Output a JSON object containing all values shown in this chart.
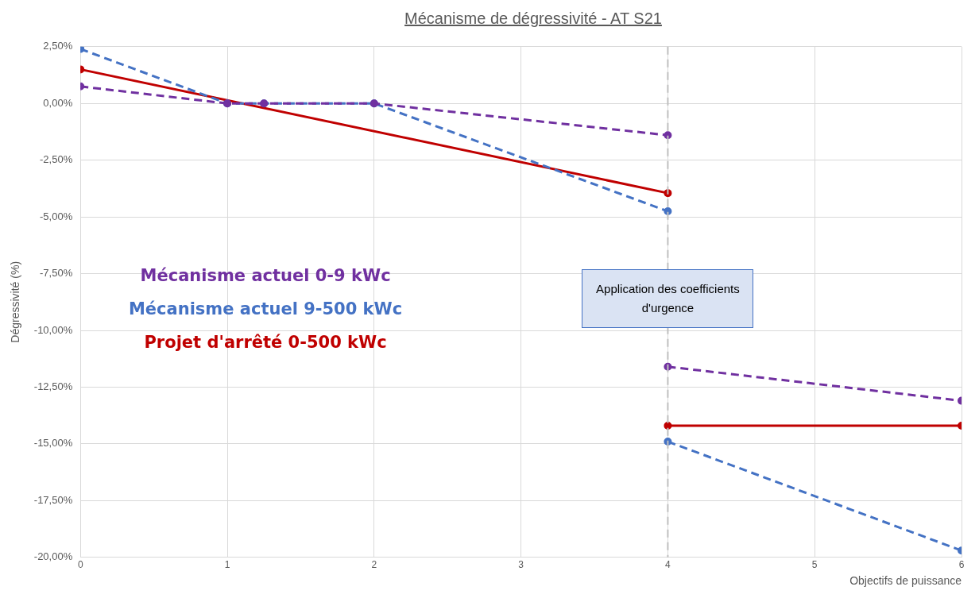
{
  "chart_data": {
    "type": "line",
    "title": "Mécanisme de dégressivité - AT S21",
    "xlabel": "Objectifs de puissance",
    "ylabel": "Dégressivité (%)",
    "xlim": [
      0,
      6
    ],
    "xticks": [
      0,
      1,
      2,
      3,
      4,
      5,
      6
    ],
    "ylim": [
      -20,
      2.5
    ],
    "yticks": [
      {
        "value": 2.5,
        "label": "2,50%"
      },
      {
        "value": 0,
        "label": "0,00%"
      },
      {
        "value": -2.5,
        "label": "-2,50%"
      },
      {
        "value": -5,
        "label": "-5,00%"
      },
      {
        "value": -7.5,
        "label": "-7,50%"
      },
      {
        "value": -10,
        "label": "-10,00%"
      },
      {
        "value": -12.5,
        "label": "-12,50%"
      },
      {
        "value": -15,
        "label": "-15,00%"
      },
      {
        "value": -17.5,
        "label": "-17,50%"
      },
      {
        "value": -20,
        "label": "-20,00%"
      }
    ],
    "grid": true,
    "legend": "left",
    "marker": "circle",
    "series": [
      {
        "name": "Mécanisme actuel 0-9 kWc",
        "color": "#7030a0",
        "line_style": "dashed",
        "x": [
          0,
          1,
          1.25,
          2,
          4
        ],
        "values": [
          0.75,
          0,
          0,
          0,
          -1.4
        ]
      },
      {
        "name": "Mécanisme actuel 9-500 kWc",
        "color": "#4472c4",
        "line_style": "dashed",
        "x": [
          0,
          1,
          1.25,
          2,
          4
        ],
        "values": [
          2.4,
          0,
          0,
          0,
          -4.75
        ]
      },
      {
        "name": "Projet d'arrêté 0-500 kWc",
        "color": "#c00000",
        "line_style": "solid",
        "x": [
          0,
          4
        ],
        "values": [
          1.5,
          -3.95
        ]
      },
      {
        "color": "#7030a0",
        "line_style": "dashed",
        "x": [
          4,
          6
        ],
        "values": [
          -11.6,
          -13.1
        ]
      },
      {
        "color": "#4472c4",
        "line_style": "dashed",
        "x": [
          4,
          6
        ],
        "values": [
          -14.9,
          -19.7
        ]
      },
      {
        "color": "#c00000",
        "line_style": "solid",
        "x": [
          4,
          6
        ],
        "values": [
          -14.2,
          -14.2
        ]
      }
    ],
    "ref_lines": [
      {
        "axis": "x",
        "value": 4,
        "color": "#bfbfbf",
        "line_style": "dashed"
      }
    ],
    "annotations": [
      {
        "text": "Application des coefficients d'urgence",
        "x": 4,
        "y": -8.6
      }
    ]
  }
}
